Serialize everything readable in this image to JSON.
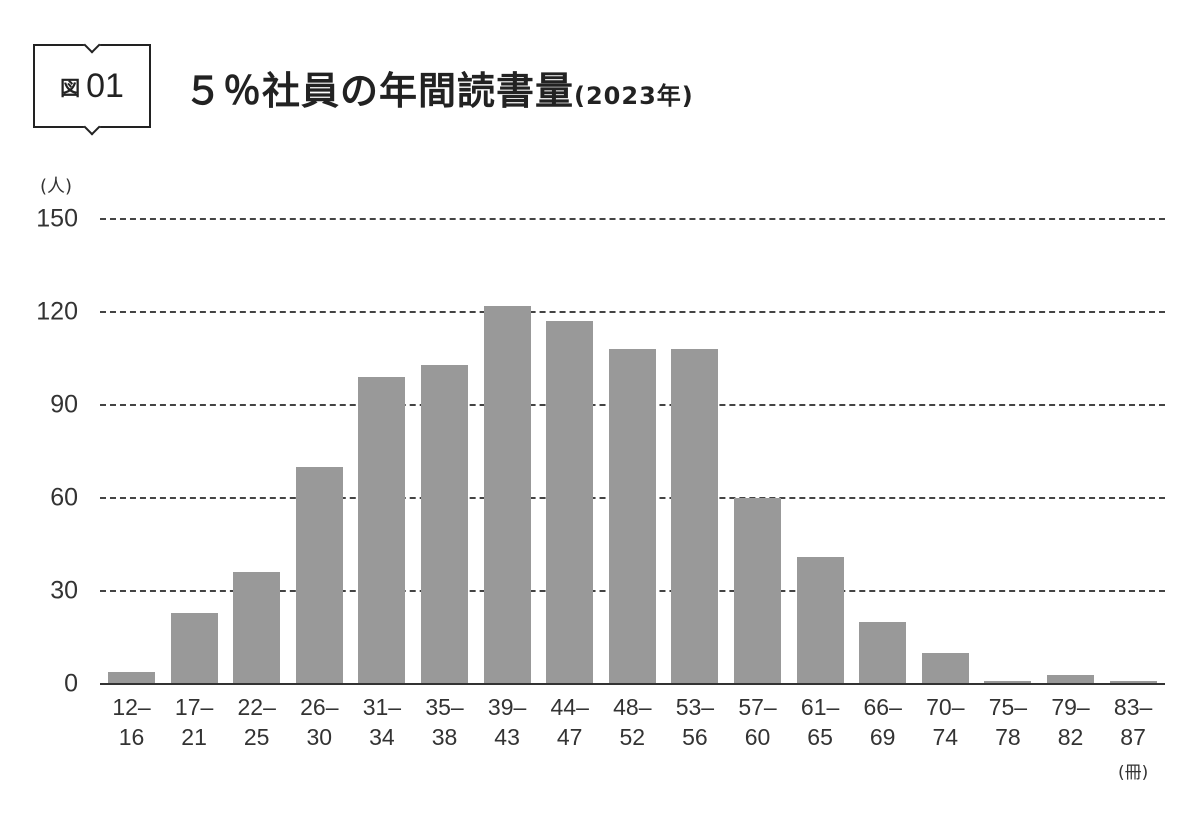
{
  "figure": {
    "kanji": "図",
    "number": "01"
  },
  "title": {
    "main": "５％社員の年間読書量",
    "sub": "(2023年)"
  },
  "chart_data": {
    "type": "bar",
    "title": "５％社員の年間読書量(2023年)",
    "xlabel": "(冊)",
    "ylabel": "(人)",
    "ylim": [
      0,
      150
    ],
    "yticks": [
      0,
      30,
      60,
      90,
      120,
      150
    ],
    "grid": true,
    "categories": [
      "12–16",
      "17–21",
      "22–25",
      "26–30",
      "31–34",
      "35–38",
      "39–43",
      "44–47",
      "48–52",
      "53–56",
      "57–60",
      "61–65",
      "66–69",
      "70–74",
      "75–78",
      "79–82",
      "83–87"
    ],
    "category_labels": [
      [
        "12–",
        "16"
      ],
      [
        "17–",
        "21"
      ],
      [
        "22–",
        "25"
      ],
      [
        "26–",
        "30"
      ],
      [
        "31–",
        "34"
      ],
      [
        "35–",
        "38"
      ],
      [
        "39–",
        "43"
      ],
      [
        "44–",
        "47"
      ],
      [
        "48–",
        "52"
      ],
      [
        "53–",
        "56"
      ],
      [
        "57–",
        "60"
      ],
      [
        "61–",
        "65"
      ],
      [
        "66–",
        "69"
      ],
      [
        "70–",
        "74"
      ],
      [
        "75–",
        "78"
      ],
      [
        "79–",
        "82"
      ],
      [
        "83–",
        "87"
      ]
    ],
    "values": [
      4,
      23,
      36,
      70,
      99,
      103,
      122,
      117,
      108,
      108,
      60,
      41,
      20,
      10,
      1,
      3,
      1
    ],
    "bar_color": "#999999"
  }
}
